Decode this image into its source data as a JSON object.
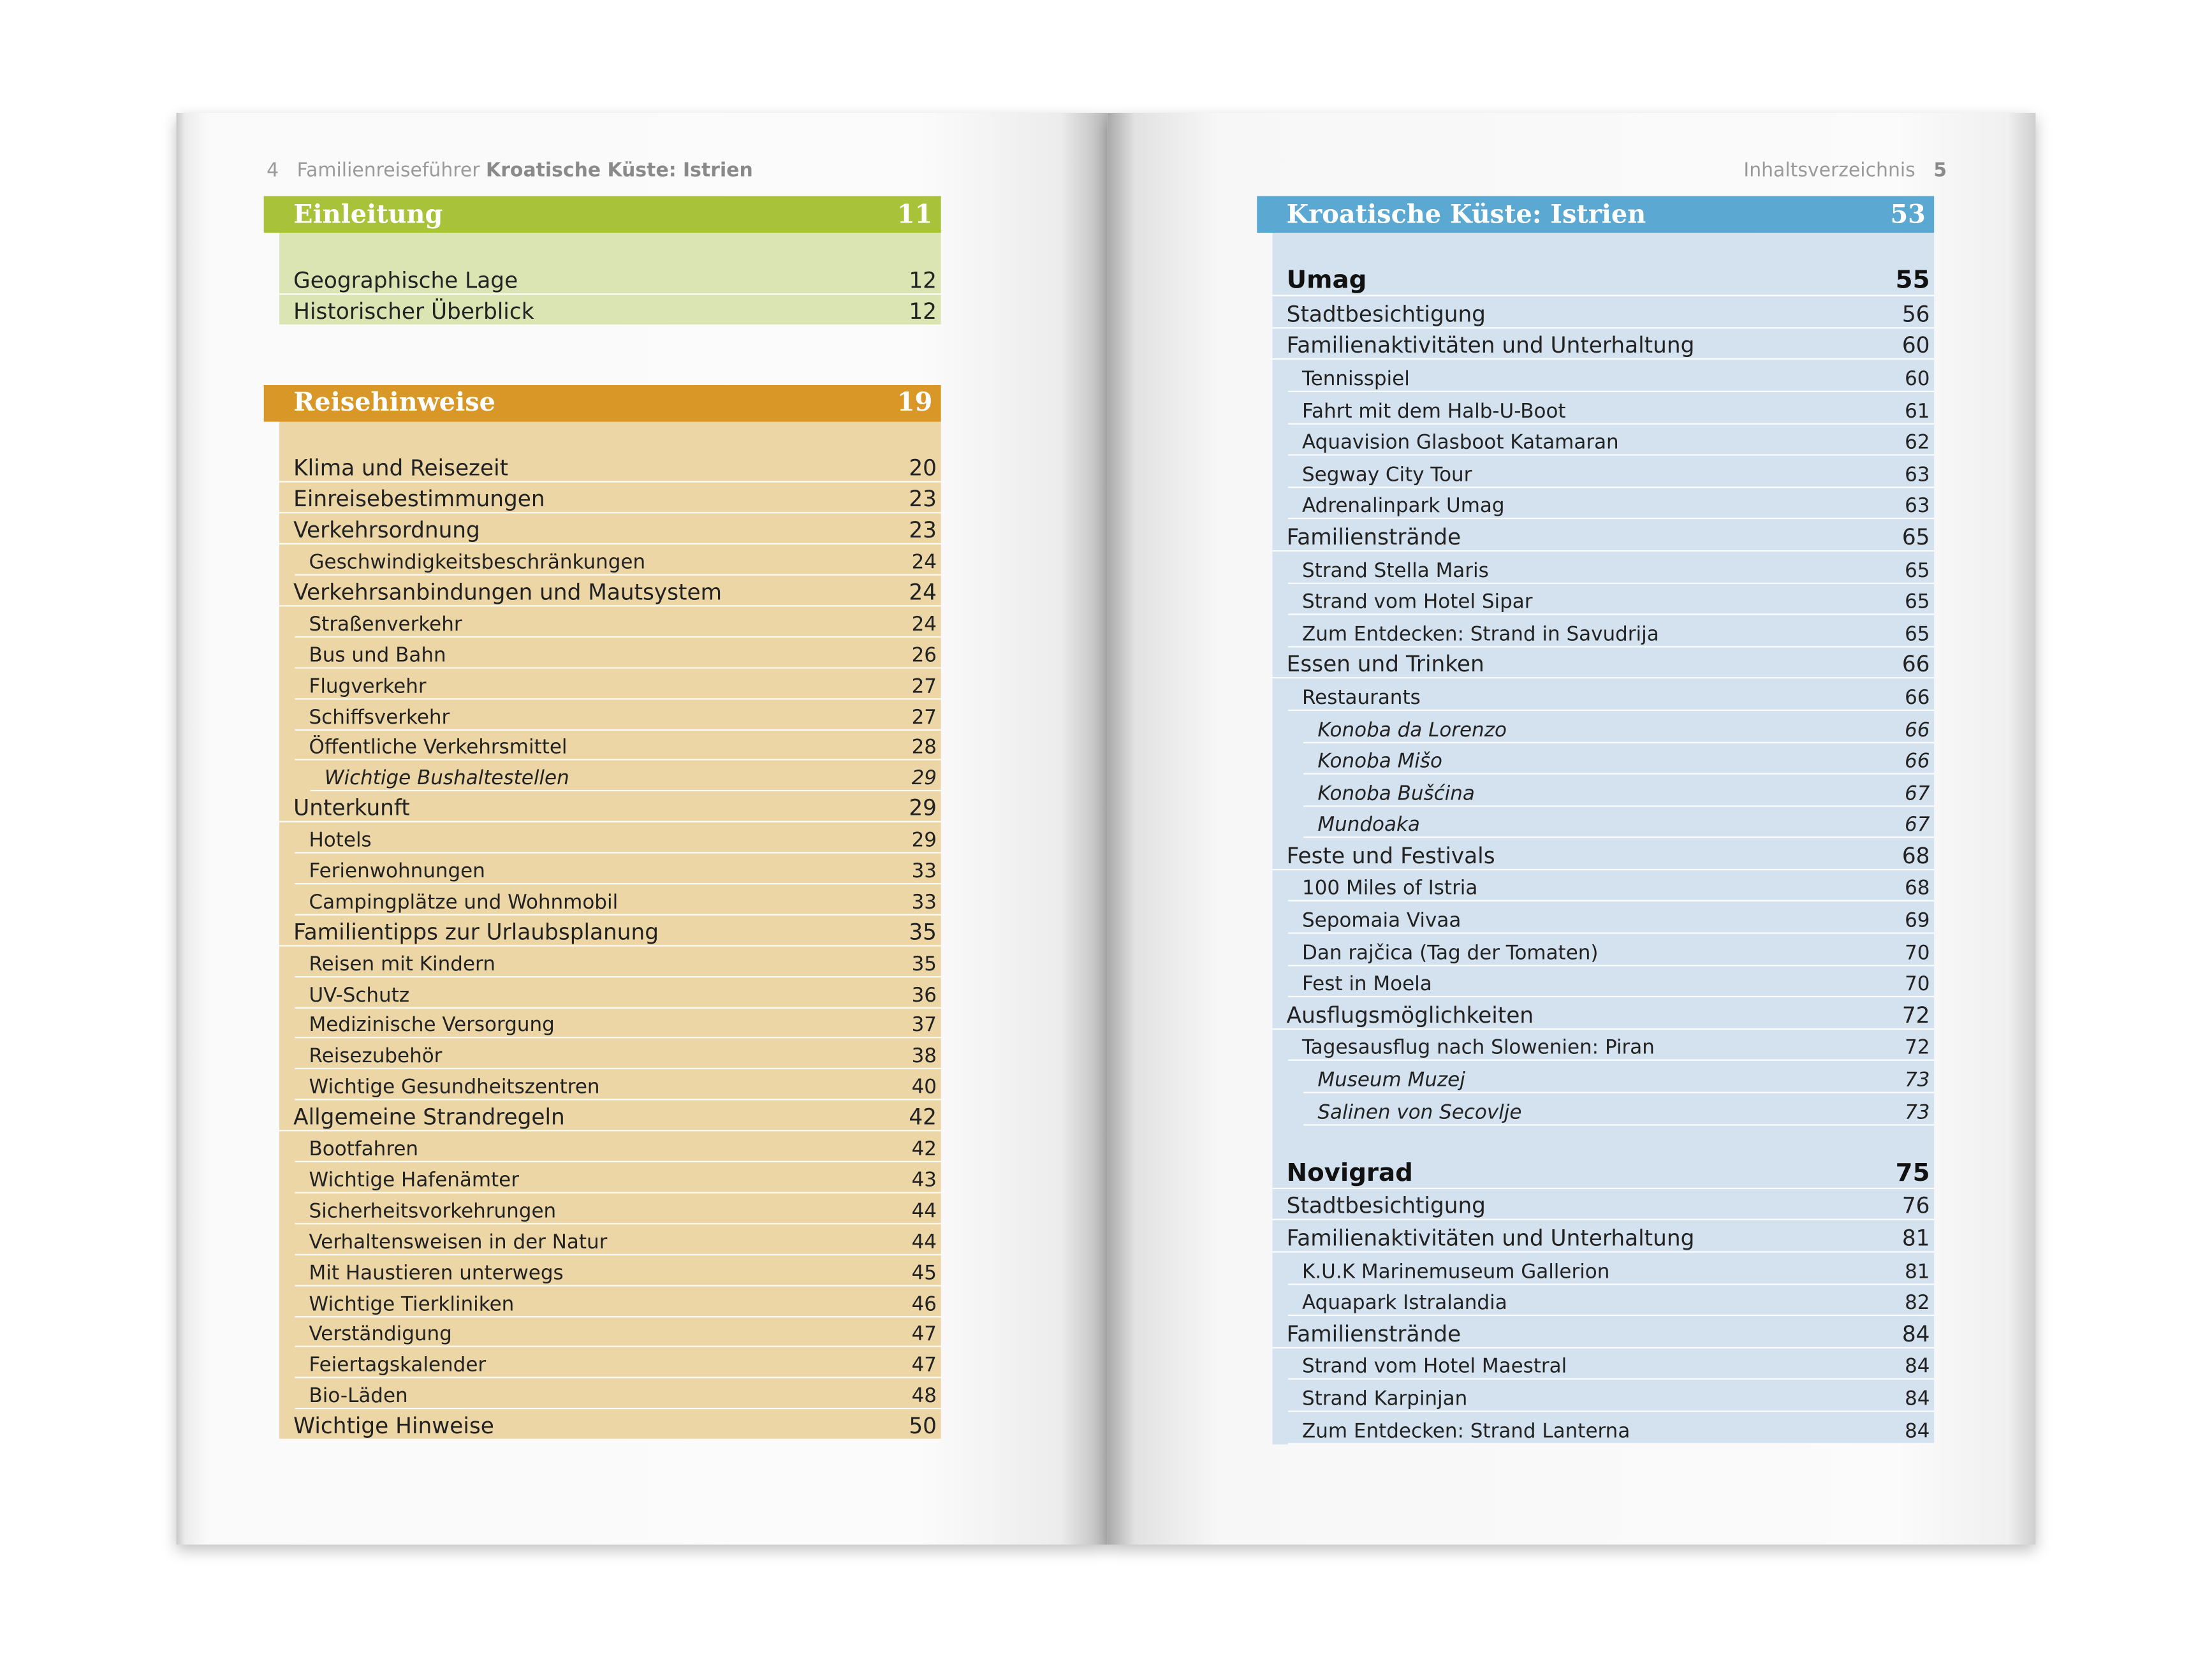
{
  "left_page": {
    "header": {
      "page_number": 4,
      "series": "Familienreiseführer",
      "book_title": "Kroatische Küste: Istrien"
    },
    "sections": [
      {
        "title": "Einleitung",
        "page": 11,
        "color": "#a8c239",
        "fill": "#dbe5b4",
        "groups": [
          [
            {
              "title": "Geographische Lage",
              "page": 12,
              "level": 1
            },
            {
              "title": "Historischer Überblick",
              "page": 12,
              "level": 1
            }
          ]
        ]
      },
      {
        "title": "Reisehinweise",
        "page": 19,
        "color": "#d89727",
        "fill": "#ecd6a6",
        "groups": [
          [
            {
              "title": "Klima und Reisezeit",
              "page": 20,
              "level": 1
            },
            {
              "title": "Einreisebestimmungen",
              "page": 23,
              "level": 1
            },
            {
              "title": "Verkehrsordnung",
              "page": 23,
              "level": 1
            },
            {
              "title": "Geschwindigkeitsbeschränkungen",
              "page": 24,
              "level": 2
            },
            {
              "title": "Verkehrsanbindungen und Mautsystem",
              "page": 24,
              "level": 1
            },
            {
              "title": "Straßenverkehr",
              "page": 24,
              "level": 2
            },
            {
              "title": "Bus und Bahn",
              "page": 26,
              "level": 2
            },
            {
              "title": "Flugverkehr",
              "page": 27,
              "level": 2
            },
            {
              "title": "Schiffsverkehr",
              "page": 27,
              "level": 2
            },
            {
              "title": "Öffentliche Verkehrsmittel",
              "page": 28,
              "level": 2
            },
            {
              "title": "Wichtige Bushaltestellen",
              "page": 29,
              "level": 3
            },
            {
              "title": "Unterkunft",
              "page": 29,
              "level": 1
            },
            {
              "title": "Hotels",
              "page": 29,
              "level": 2
            },
            {
              "title": "Ferienwohnungen",
              "page": 33,
              "level": 2
            },
            {
              "title": "Campingplätze und Wohnmobil",
              "page": 33,
              "level": 2
            },
            {
              "title": "Familientipps zur Urlaubsplanung",
              "page": 35,
              "level": 1
            },
            {
              "title": "Reisen mit Kindern",
              "page": 35,
              "level": 2
            },
            {
              "title": "UV-Schutz",
              "page": 36,
              "level": 2
            },
            {
              "title": "Medizinische Versorgung",
              "page": 37,
              "level": 2
            },
            {
              "title": "Reisezubehör",
              "page": 38,
              "level": 2
            },
            {
              "title": "Wichtige Gesundheitszentren",
              "page": 40,
              "level": 2
            },
            {
              "title": "Allgemeine Strandregeln",
              "page": 42,
              "level": 1
            },
            {
              "title": "Bootfahren",
              "page": 42,
              "level": 2
            },
            {
              "title": "Wichtige Hafenämter",
              "page": 43,
              "level": 2
            },
            {
              "title": "Sicherheitsvorkehrungen",
              "page": 44,
              "level": 2
            },
            {
              "title": "Verhaltensweisen in der Natur",
              "page": 44,
              "level": 2
            },
            {
              "title": "Mit Haustieren unterwegs",
              "page": 45,
              "level": 2
            },
            {
              "title": "Wichtige Tierkliniken",
              "page": 46,
              "level": 2
            },
            {
              "title": "Verständigung",
              "page": 47,
              "level": 2
            },
            {
              "title": "Feiertagskalender",
              "page": 47,
              "level": 2
            },
            {
              "title": "Bio-Läden",
              "page": 48,
              "level": 2
            },
            {
              "title": "Wichtige Hinweise",
              "page": 50,
              "level": 1
            }
          ]
        ]
      }
    ]
  },
  "right_page": {
    "header": {
      "title": "Inhaltsverzeichnis",
      "page_number": 5
    },
    "sections": [
      {
        "title": "Kroatische Küste: Istrien",
        "page": 53,
        "color": "#5ba8d3",
        "fill": "#d3e2ee",
        "groups": [
          [
            {
              "title": "Umag",
              "page": 55,
              "level": 0
            },
            {
              "title": "Stadtbesichtigung",
              "page": 56,
              "level": 1
            },
            {
              "title": "Familienaktivitäten und Unterhaltung",
              "page": 60,
              "level": 1
            },
            {
              "title": "Tennisspiel",
              "page": 60,
              "level": 2
            },
            {
              "title": "Fahrt mit dem Halb-U-Boot",
              "page": 61,
              "level": 2
            },
            {
              "title": "Aquavision Glasboot Katamaran",
              "page": 62,
              "level": 2
            },
            {
              "title": "Segway City Tour",
              "page": 63,
              "level": 2
            },
            {
              "title": "Adrenalinpark Umag",
              "page": 63,
              "level": 2
            },
            {
              "title": "Familienstrände",
              "page": 65,
              "level": 1
            },
            {
              "title": "Strand Stella Maris",
              "page": 65,
              "level": 2
            },
            {
              "title": "Strand vom Hotel Sipar",
              "page": 65,
              "level": 2
            },
            {
              "title": "Zum Entdecken: Strand in Savudrija",
              "page": 65,
              "level": 2
            },
            {
              "title": "Essen und Trinken",
              "page": 66,
              "level": 1
            },
            {
              "title": "Restaurants",
              "page": 66,
              "level": 2
            },
            {
              "title": "Konoba da Lorenzo",
              "page": 66,
              "level": 3
            },
            {
              "title": "Konoba Mišo",
              "page": 66,
              "level": 3
            },
            {
              "title": "Konoba Bušćina",
              "page": 67,
              "level": 3
            },
            {
              "title": "Mundoaka",
              "page": 67,
              "level": 3
            },
            {
              "title": "Feste und Festivals",
              "page": 68,
              "level": 1
            },
            {
              "title": "100 Miles of Istria",
              "page": 68,
              "level": 2
            },
            {
              "title": "Sepomaia Vivaa",
              "page": 69,
              "level": 2
            },
            {
              "title": "Dan rajčica (Tag der Tomaten)",
              "page": 70,
              "level": 2
            },
            {
              "title": "Fest in Moela",
              "page": 70,
              "level": 2
            },
            {
              "title": "Ausflugsmöglichkeiten",
              "page": 72,
              "level": 1
            },
            {
              "title": "Tagesausflug nach Slowenien: Piran",
              "page": 72,
              "level": 2
            },
            {
              "title": "Museum Muzej",
              "page": 73,
              "level": 3
            },
            {
              "title": "Salinen von Secovlje",
              "page": 73,
              "level": 3
            }
          ],
          [
            {
              "title": "Novigrad",
              "page": 75,
              "level": 0
            },
            {
              "title": "Stadtbesichtigung",
              "page": 76,
              "level": 1
            },
            {
              "title": "Familienaktivitäten und Unterhaltung",
              "page": 81,
              "level": 1
            },
            {
              "title": "K.U.K Marinemuseum Gallerion",
              "page": 81,
              "level": 2
            },
            {
              "title": "Aquapark Istralandia",
              "page": 82,
              "level": 2
            },
            {
              "title": "Familienstrände",
              "page": 84,
              "level": 1
            },
            {
              "title": "Strand vom Hotel Maestral",
              "page": 84,
              "level": 2
            },
            {
              "title": "Strand Karpinjan",
              "page": 84,
              "level": 2
            },
            {
              "title": "Zum Entdecken: Strand Lanterna",
              "page": 84,
              "level": 2
            }
          ]
        ]
      }
    ]
  }
}
